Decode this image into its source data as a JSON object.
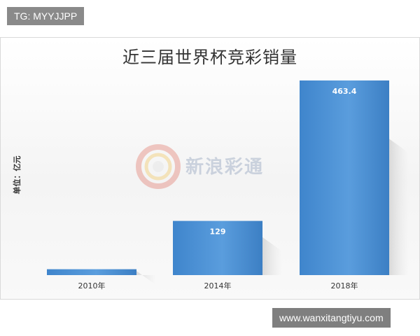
{
  "top_tag": "TG: MYYJJPP",
  "watermark_text": "新浪彩通",
  "url_badge": "www.wanxitangtiyu.com",
  "chart_data": {
    "type": "bar",
    "title": "近三届世界杯竞彩销量",
    "ylabel": "单位：亿元",
    "xlabel": "",
    "categories": [
      "2010年",
      "2014年",
      "2018年"
    ],
    "values": [
      14,
      129,
      463.4
    ],
    "data_labels": [
      "",
      "129",
      "463.4"
    ],
    "ylim": [
      0,
      500
    ],
    "bar_color": "#4a8fd4",
    "grid": false,
    "legend": "none"
  }
}
